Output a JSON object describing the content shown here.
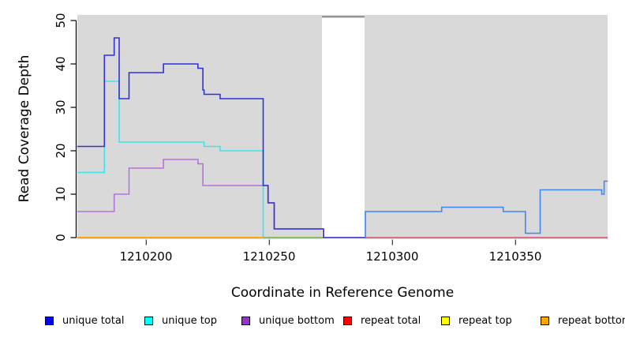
{
  "chart_data": {
    "type": "line",
    "step": "hv",
    "title": "",
    "xlabel": "Coordinate in Reference Genome",
    "ylabel": "Read Coverage Depth",
    "xlim": [
      1210172,
      1210387.5
    ],
    "ylim": [
      0,
      50
    ],
    "x_ticks": [
      1210200,
      1210250,
      1210300,
      1210350
    ],
    "x_tick_labels": [
      "1210200",
      "1210250",
      "1210300",
      "1210350"
    ],
    "y_ticks": [
      0,
      10,
      20,
      30,
      40,
      50
    ],
    "y_tick_labels": [
      "0",
      "10",
      "20",
      "30",
      "40",
      "50"
    ],
    "plot_bg": "#d9d9d9",
    "page_bg": "#ffffff",
    "grid": "off",
    "legend_position": "bottom",
    "no_data_gap": {
      "x_start": 1210272,
      "x_end": 1210289,
      "fill": "#ffffff",
      "top_edge": "#8f8f8f"
    },
    "series": [
      {
        "name": "repeat-total",
        "legend": "repeat total",
        "color": "#ff0000",
        "paths": [
          {
            "pts": [
              [
                1210172,
                0
              ],
              [
                1210272,
                0
              ]
            ]
          },
          {
            "color": "#d5506c",
            "pts": [
              [
                1210289,
                0
              ],
              [
                1210387.5,
                0
              ]
            ]
          }
        ]
      },
      {
        "name": "repeat-top",
        "legend": "repeat top",
        "color": "#ffff00",
        "paths": [
          {
            "pts": [
              [
                1210172,
                0
              ],
              [
                1210272,
                0
              ]
            ]
          }
        ]
      },
      {
        "name": "repeat-bottom",
        "legend": "repeat bottom",
        "color": "#ffa000",
        "paths": [
          {
            "pts": [
              [
                1210172,
                0
              ],
              [
                1210272,
                0
              ]
            ]
          }
        ]
      },
      {
        "name": "unique-bottom",
        "legend": "unique bottom",
        "color": "#b473de",
        "paths": [
          {
            "pts": [
              [
                1210172,
                6
              ],
              [
                1210187,
                10
              ],
              [
                1210193,
                16
              ],
              [
                1210207,
                18
              ],
              [
                1210221,
                17
              ],
              [
                1210223,
                12
              ],
              [
                1210249.5,
                8
              ],
              [
                1210252,
                2
              ],
              [
                1210272,
                0
              ],
              [
                1210289,
                0
              ]
            ]
          }
        ]
      },
      {
        "name": "unique-top",
        "legend": "unique top",
        "color": "#40e3e8",
        "paths": [
          {
            "pts": [
              [
                1210172,
                15
              ],
              [
                1210183,
                36
              ],
              [
                1210189,
                22
              ],
              [
                1210223.5,
                21
              ],
              [
                1210230,
                20
              ],
              [
                1210247.5,
                0
              ]
            ]
          },
          {
            "color": "#5dc87d",
            "pts": [
              [
                1210247.5,
                0
              ],
              [
                1210272,
                0
              ]
            ]
          }
        ]
      },
      {
        "name": "unique-total",
        "legend": "unique total",
        "color": "#3030db",
        "paths": [
          {
            "pts": [
              [
                1210172,
                21
              ],
              [
                1210183,
                42
              ],
              [
                1210187,
                46
              ],
              [
                1210189,
                32
              ],
              [
                1210193,
                38
              ],
              [
                1210207,
                40
              ],
              [
                1210221,
                39
              ],
              [
                1210223,
                34
              ],
              [
                1210223.5,
                33
              ],
              [
                1210230,
                32
              ],
              [
                1210247.5,
                12
              ],
              [
                1210249.5,
                8
              ],
              [
                1210252,
                2
              ],
              [
                1210272,
                0
              ],
              [
                1210289,
                0
              ]
            ]
          },
          {
            "color": "#4285f4",
            "pts": [
              [
                1210289,
                0
              ],
              [
                1210289,
                6
              ],
              [
                1210320,
                7
              ],
              [
                1210345,
                6
              ],
              [
                1210354,
                1
              ],
              [
                1210360,
                11
              ],
              [
                1210385,
                10
              ],
              [
                1210386,
                13
              ],
              [
                1210387.5,
                13
              ]
            ]
          }
        ]
      }
    ],
    "legend": [
      {
        "label": "unique total",
        "color": "#0000ee"
      },
      {
        "label": "unique top",
        "color": "#00ffff"
      },
      {
        "label": "unique bottom",
        "color": "#9932cc"
      },
      {
        "label": "repeat total",
        "color": "#ff0000"
      },
      {
        "label": "repeat top",
        "color": "#ffff00"
      },
      {
        "label": "repeat bottom",
        "color": "#ffa500"
      }
    ]
  }
}
